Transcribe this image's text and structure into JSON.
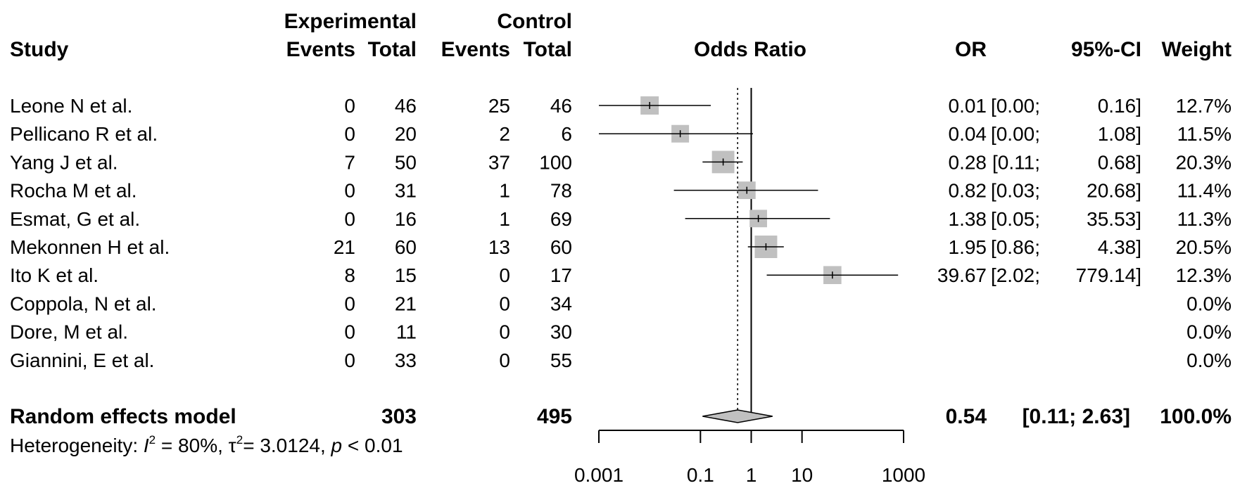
{
  "chart_data": {
    "type": "forest",
    "xlabel": "Odds Ratio",
    "x_scale": "log",
    "xlim": [
      0.001,
      1000
    ],
    "ticks": [
      0.001,
      0.1,
      1,
      10,
      1000
    ],
    "tick_labels": [
      "0.001",
      "0.1",
      "1",
      "10",
      "1000"
    ],
    "reference_line": 1,
    "pooled_line": 0.54,
    "headers": {
      "study": "Study",
      "experimental": "Experimental",
      "control": "Control",
      "events": "Events",
      "total": "Total",
      "odds_ratio": "Odds Ratio",
      "or": "OR",
      "ci": "95%-CI",
      "weight": "Weight"
    },
    "studies": [
      {
        "name": "Leone N et al.",
        "exp_events": "0",
        "exp_total": "46",
        "ctrl_events": "25",
        "ctrl_total": "46",
        "or": 0.01,
        "lo": 0.0,
        "hi": 0.16,
        "or_text": "0.01",
        "ci_lo_text": "[0.00;",
        "ci_hi_text": "0.16]",
        "weight_text": "12.7%",
        "weight": 12.7
      },
      {
        "name": "Pellicano R et al.",
        "exp_events": "0",
        "exp_total": "20",
        "ctrl_events": "2",
        "ctrl_total": "6",
        "or": 0.04,
        "lo": 0.0,
        "hi": 1.08,
        "or_text": "0.04",
        "ci_lo_text": "[0.00;",
        "ci_hi_text": "1.08]",
        "weight_text": "11.5%",
        "weight": 11.5
      },
      {
        "name": "Yang J et al.",
        "exp_events": "7",
        "exp_total": "50",
        "ctrl_events": "37",
        "ctrl_total": "100",
        "or": 0.28,
        "lo": 0.11,
        "hi": 0.68,
        "or_text": "0.28",
        "ci_lo_text": "[0.11;",
        "ci_hi_text": "0.68]",
        "weight_text": "20.3%",
        "weight": 20.3
      },
      {
        "name": "Rocha M et al.",
        "exp_events": "0",
        "exp_total": "31",
        "ctrl_events": "1",
        "ctrl_total": "78",
        "or": 0.82,
        "lo": 0.03,
        "hi": 20.68,
        "or_text": "0.82",
        "ci_lo_text": "[0.03;",
        "ci_hi_text": "20.68]",
        "weight_text": "11.4%",
        "weight": 11.4
      },
      {
        "name": "Esmat, G et al.",
        "exp_events": "0",
        "exp_total": "16",
        "ctrl_events": "1",
        "ctrl_total": "69",
        "or": 1.38,
        "lo": 0.05,
        "hi": 35.53,
        "or_text": "1.38",
        "ci_lo_text": "[0.05;",
        "ci_hi_text": "35.53]",
        "weight_text": "11.3%",
        "weight": 11.3
      },
      {
        "name": "Mekonnen H et al.",
        "exp_events": "21",
        "exp_total": "60",
        "ctrl_events": "13",
        "ctrl_total": "60",
        "or": 1.95,
        "lo": 0.86,
        "hi": 4.38,
        "or_text": "1.95",
        "ci_lo_text": "[0.86;",
        "ci_hi_text": "4.38]",
        "weight_text": "20.5%",
        "weight": 20.5
      },
      {
        "name": "Ito K et al.",
        "exp_events": "8",
        "exp_total": "15",
        "ctrl_events": "0",
        "ctrl_total": "17",
        "or": 39.67,
        "lo": 2.02,
        "hi": 779.14,
        "or_text": "39.67",
        "ci_lo_text": "[2.02;",
        "ci_hi_text": "779.14]",
        "weight_text": "12.3%",
        "weight": 12.3
      },
      {
        "name": "Coppola, N et al.",
        "exp_events": "0",
        "exp_total": "21",
        "ctrl_events": "0",
        "ctrl_total": "34",
        "or": null,
        "lo": null,
        "hi": null,
        "or_text": "",
        "ci_lo_text": "",
        "ci_hi_text": "",
        "weight_text": "0.0%",
        "weight": 0.0
      },
      {
        "name": "Dore, M et al.",
        "exp_events": "0",
        "exp_total": "11",
        "ctrl_events": "0",
        "ctrl_total": "30",
        "or": null,
        "lo": null,
        "hi": null,
        "or_text": "",
        "ci_lo_text": "",
        "ci_hi_text": "",
        "weight_text": "0.0%",
        "weight": 0.0
      },
      {
        "name": "Giannini, E et al.",
        "exp_events": "0",
        "exp_total": "33",
        "ctrl_events": "0",
        "ctrl_total": "55",
        "or": null,
        "lo": null,
        "hi": null,
        "or_text": "",
        "ci_lo_text": "",
        "ci_hi_text": "",
        "weight_text": "0.0%",
        "weight": 0.0
      }
    ],
    "pooled": {
      "label": "Random effects model",
      "exp_total": "303",
      "ctrl_total": "495",
      "or": 0.54,
      "lo": 0.11,
      "hi": 2.63,
      "or_text": "0.54",
      "ci_text": "[0.11; 2.63]",
      "weight_text": "100.0%"
    },
    "heterogeneity": {
      "prefix": "Heterogeneity: ",
      "i2_symbol": "I",
      "i2_value": " = 80%, ",
      "tau_symbol": "τ",
      "tau_value": "= 3.0124, ",
      "p_symbol": "p",
      "p_value": " < 0.01"
    },
    "colors": {
      "square": "#c0c0c0",
      "diamond": "#c0c0c0",
      "line": "#000000"
    }
  }
}
